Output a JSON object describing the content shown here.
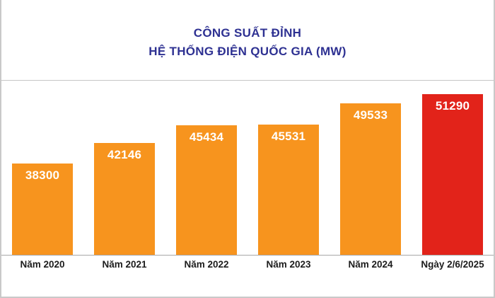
{
  "chart_data": {
    "type": "bar",
    "title_line1": "CÔNG SUẤT ĐỈNH",
    "title_line2": "HỆ THỐNG ĐIỆN QUỐC GIA (MW)",
    "categories": [
      "Năm 2020",
      "Năm 2021",
      "Năm 2022",
      "Năm 2023",
      "Năm 2024",
      "Ngày 2/6/2025"
    ],
    "values": [
      38300,
      42146,
      45434,
      45531,
      49533,
      51290
    ],
    "value_labels": [
      "38300",
      "42146",
      "45434",
      "45531",
      "49533",
      "51290"
    ],
    "bar_colors": [
      "#f7941e",
      "#f7941e",
      "#f7941e",
      "#f7941e",
      "#f7941e",
      "#e2231a"
    ],
    "default_bar_color": "#f7941e",
    "highlight_color": "#e2231a",
    "title_color": "#2e3192",
    "value_label_color": "#ffffff",
    "xlabel": "",
    "ylabel": "",
    "ylim": [
      21000,
      54000
    ],
    "grid": "top-rule-only",
    "legend": "none"
  }
}
